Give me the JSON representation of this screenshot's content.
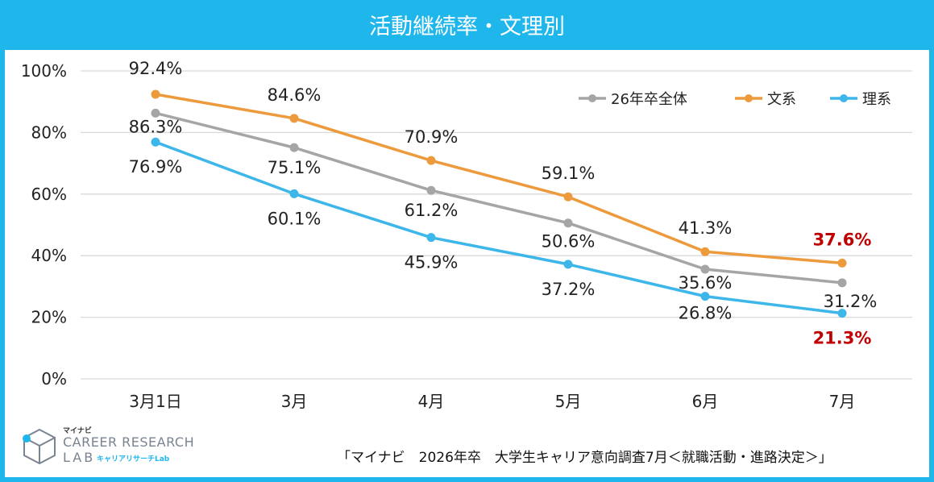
{
  "chart_data": {
    "type": "line",
    "title": "活動継続率・文理別",
    "categories": [
      "3月1日",
      "3月",
      "4月",
      "5月",
      "6月",
      "7月"
    ],
    "ylim": [
      0,
      100
    ],
    "yticks": [
      "0%",
      "20%",
      "40%",
      "60%",
      "80%",
      "100%"
    ],
    "grid": true,
    "legend_position": "top-right",
    "series": [
      {
        "name": "26年卒全体",
        "color": "#a5a5a5",
        "values": [
          86.3,
          75.1,
          61.2,
          50.6,
          35.6,
          31.2
        ],
        "labels": [
          "86.3%",
          "75.1%",
          "61.2%",
          "50.6%",
          "35.6%",
          "31.2%"
        ]
      },
      {
        "name": "文系",
        "color": "#ed9a3c",
        "values": [
          92.4,
          84.6,
          70.9,
          59.1,
          41.3,
          37.6
        ],
        "labels": [
          "92.4%",
          "84.6%",
          "70.9%",
          "59.1%",
          "41.3%",
          "37.6%"
        ]
      },
      {
        "name": "理系",
        "color": "#3db6ea",
        "values": [
          76.9,
          60.1,
          45.9,
          37.2,
          26.8,
          21.3
        ],
        "labels": [
          "76.9%",
          "60.1%",
          "45.9%",
          "37.2%",
          "26.8%",
          "21.3%"
        ]
      }
    ],
    "highlight_color": "#c00000"
  },
  "logo": {
    "small": "マイナビ",
    "main": "CAREER RESEARCH",
    "lab": "LAB",
    "sub": "キャリアリサーチLab"
  },
  "source": "「マイナビ　2026年卒　大学生キャリア意向調査7月＜就職活動・進路決定＞」"
}
